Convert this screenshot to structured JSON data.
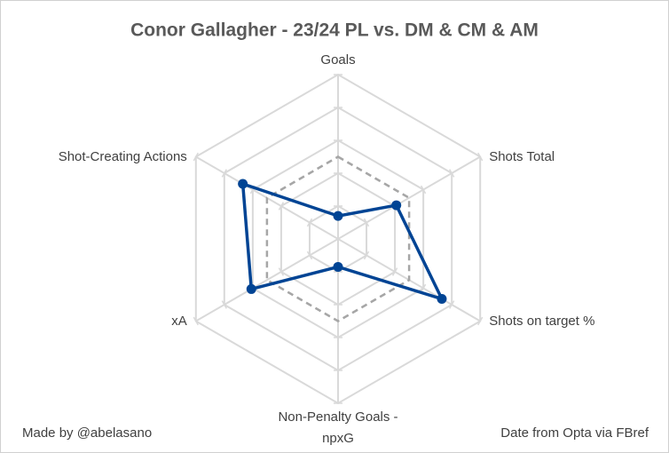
{
  "chart_data": {
    "type": "radar",
    "title": "Conor Gallagher - 23/24 PL vs. DM & CM & AM",
    "categories": [
      "Goals",
      "Shots Total",
      "Shots on target %",
      "Non-Penalty Goals - npxG",
      "xA",
      "Shot-Creating Actions"
    ],
    "series": [
      {
        "color": "#004494",
        "values": [
          14,
          41,
          73,
          17,
          61,
          67
        ]
      },
      {
        "color": "#a6a6a6",
        "values": [
          50,
          50,
          50,
          50,
          50,
          50
        ]
      }
    ],
    "ylim": [
      0,
      100
    ],
    "yticks": [
      0,
      20,
      40,
      60,
      80,
      100
    ],
    "grid": true,
    "footer_left": "Made by @abelasano",
    "footer_right": "Date from Opta via FBref"
  }
}
